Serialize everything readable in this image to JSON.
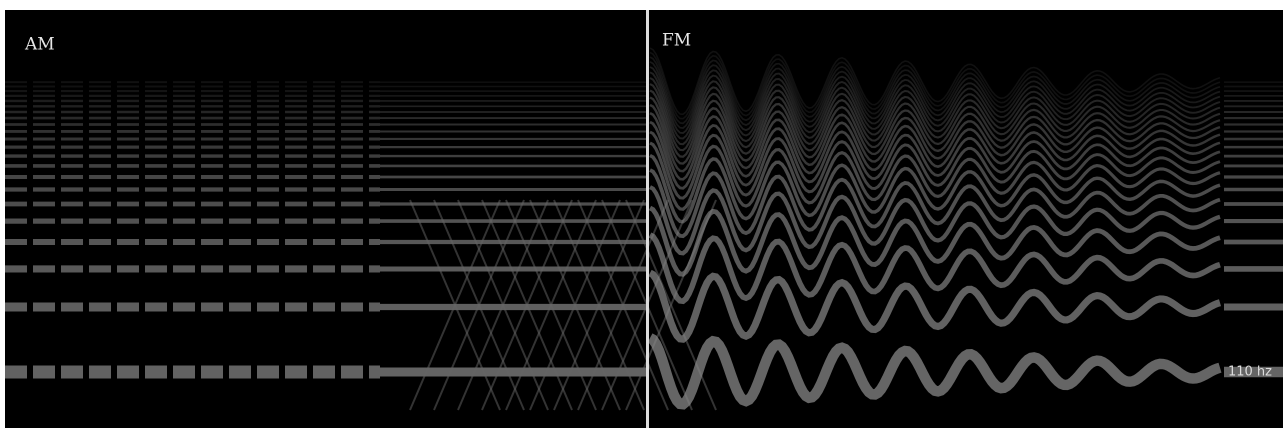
{
  "panels": [
    {
      "label": "AM"
    },
    {
      "label": "FM",
      "annotation": "110 hz"
    }
  ]
}
